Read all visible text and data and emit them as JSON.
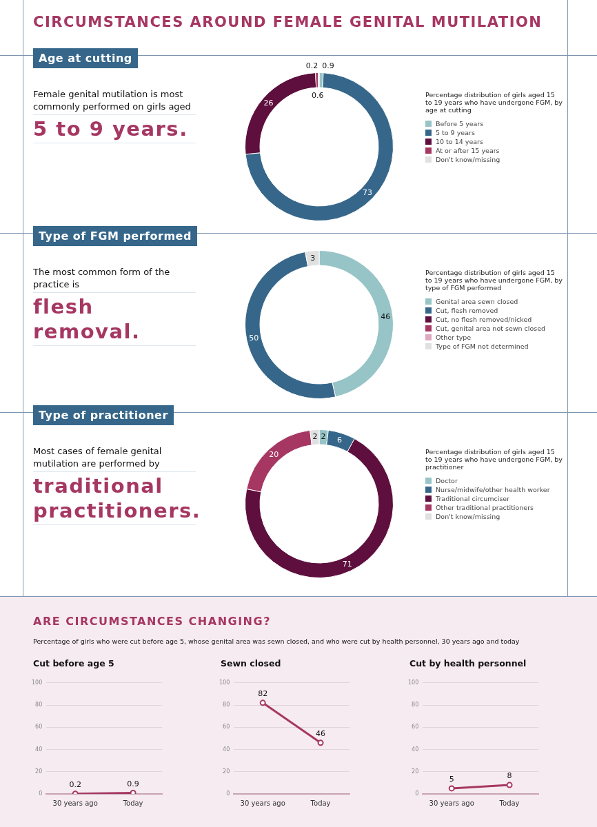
{
  "chart_data": [
    {
      "type": "other",
      "title": "CIRCUMSTANCES AROUND FEMALE GENITAL MUTILATION"
    },
    {
      "type": "donut",
      "title": "Age at cutting",
      "annotations": [
        "Female genital mutilation is most commonly performed on girls aged",
        "5 to 9 years."
      ],
      "legend_title": "Percentage distribution of girls aged 15 to 19 years who have undergone FGM, by age at cutting",
      "legend": "right",
      "data_labels": true,
      "categories": [
        "Before 5 years",
        "5 to 9 years",
        "10 to 14 years",
        "At or after 15 years",
        "Don't know/missing"
      ],
      "values": [
        0.9,
        73,
        26,
        0.6,
        0.2
      ],
      "colors": [
        "#97c4c6",
        "#36678a",
        "#5e0f3d",
        "#a63762",
        "#e0e0e0"
      ]
    },
    {
      "type": "donut",
      "title": "Type of FGM performed",
      "annotations": [
        "The most common form of the practice is",
        "flesh removal."
      ],
      "legend_title": "Percentage distribution of girls aged 15 to 19 years who have undergone FGM, by type of FGM performed",
      "legend": "right",
      "categories": [
        "Genital area sewn closed",
        "Cut, flesh removed",
        "Cut, no flesh removed/nicked",
        "Cut, genital area not sewn closed",
        "Other type",
        "Type of FGM not determined"
      ],
      "values": [
        46,
        50,
        0,
        0,
        0,
        3
      ],
      "value_labels": [
        "46",
        "50",
        null,
        null,
        null,
        "3"
      ],
      "colors": [
        "#97c4c6",
        "#36678a",
        "#5e0f3d",
        "#a63762",
        "#dfa9bf",
        "#e0e0e0"
      ]
    },
    {
      "type": "donut",
      "title": "Type of practitioner",
      "annotations": [
        "Most cases of female genital mutilation are performed by",
        "traditional practitioners."
      ],
      "legend_title": "Percentage distribution of girls aged 15 to 19 years who have undergone FGM, by practitioner",
      "legend": "right",
      "data_labels": true,
      "categories": [
        "Doctor",
        "Nurse/midwife/other health worker",
        "Traditional circumciser",
        "Other traditional practitioners",
        "Don't know/missing"
      ],
      "values": [
        2,
        6,
        71,
        20,
        2
      ],
      "colors": [
        "#97c4c6",
        "#36678a",
        "#5e0f3d",
        "#a63762",
        "#e0e0e0"
      ]
    },
    {
      "type": "other",
      "title": "ARE CIRCUMSTANCES CHANGING?",
      "subtitle": "Percentage of girls who were cut before age 5, whose genital area was sewn closed, and who were cut by health personnel, 30 years ago and today"
    },
    {
      "type": "line",
      "title": "Cut before age 5",
      "categories": [
        "30 years ago",
        "Today"
      ],
      "values": [
        0.2,
        0.9
      ],
      "color": "#a63762",
      "ylim": [
        0,
        100
      ],
      "yticks": [
        0,
        20,
        40,
        60,
        80,
        100
      ],
      "grid": "y",
      "marker": "circle",
      "data_labels": true
    },
    {
      "type": "line",
      "title": "Sewn closed",
      "categories": [
        "30 years ago",
        "Today"
      ],
      "values": [
        82,
        46
      ],
      "color": "#a63762",
      "ylim": [
        0,
        100
      ],
      "yticks": [
        0,
        20,
        40,
        60,
        80,
        100
      ],
      "grid": "y",
      "marker": "circle",
      "data_labels": true
    },
    {
      "type": "line",
      "title": "Cut by health personnel",
      "categories": [
        "30 years ago",
        "Today"
      ],
      "values": [
        5,
        8
      ],
      "color": "#a63762",
      "ylim": [
        0,
        100
      ],
      "yticks": [
        0,
        20,
        40,
        60,
        80,
        100
      ],
      "grid": "y",
      "marker": "circle",
      "data_labels": true
    }
  ]
}
